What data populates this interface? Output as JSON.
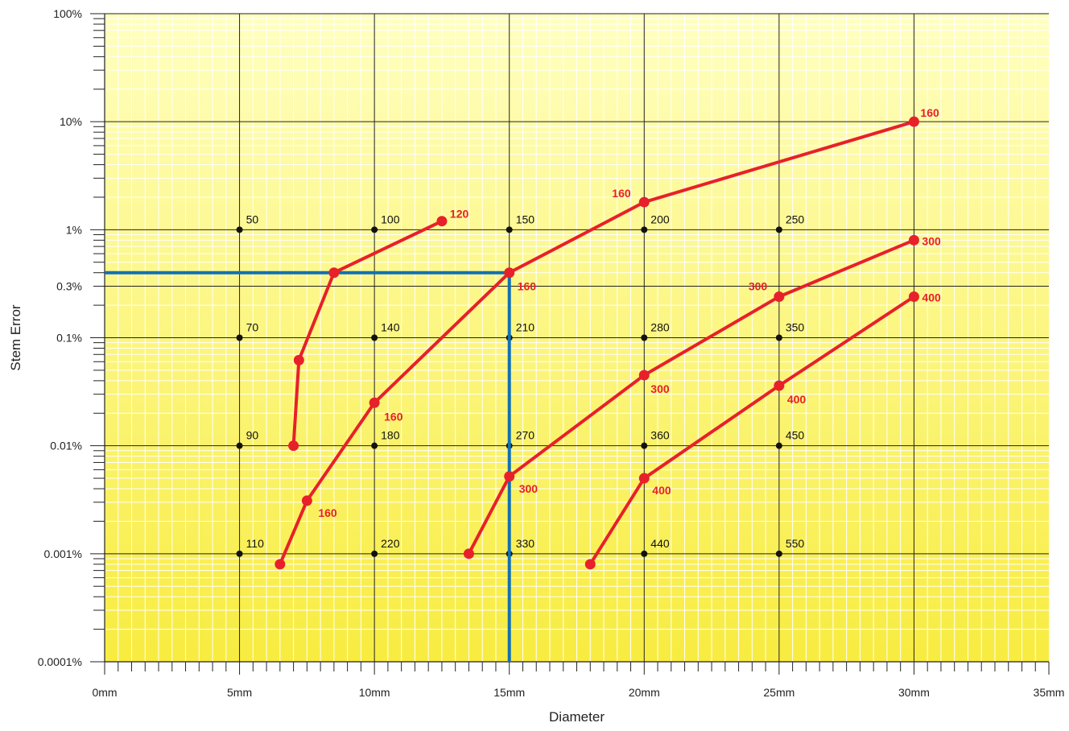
{
  "chart_data": {
    "type": "line",
    "xlabel": "Diameter",
    "ylabel": "Stem Error",
    "x_unit": "mm",
    "y_scale": "log",
    "xlim": [
      0,
      35
    ],
    "ylim": [
      0.0001,
      100
    ],
    "x_ticks": [
      {
        "value": 0,
        "label": "0mm"
      },
      {
        "value": 5,
        "label": "5mm"
      },
      {
        "value": 10,
        "label": "10mm"
      },
      {
        "value": 15,
        "label": "15mm"
      },
      {
        "value": 20,
        "label": "20mm"
      },
      {
        "value": 25,
        "label": "25mm"
      },
      {
        "value": 30,
        "label": "30mm"
      },
      {
        "value": 35,
        "label": "35mm"
      }
    ],
    "y_ticks": [
      {
        "value": 100,
        "label": "100%"
      },
      {
        "value": 10,
        "label": "10%"
      },
      {
        "value": 1,
        "label": "1%"
      },
      {
        "value": 0.3,
        "label": "0.3%"
      },
      {
        "value": 0.1,
        "label": "0.1%"
      },
      {
        "value": 0.01,
        "label": "0.01%"
      },
      {
        "value": 0.001,
        "label": "0.001%"
      },
      {
        "value": 0.0001,
        "label": "0.0001%"
      }
    ],
    "grid_nodes": [
      {
        "x": 5,
        "y": 1,
        "label": "50"
      },
      {
        "x": 10,
        "y": 1,
        "label": "100"
      },
      {
        "x": 15,
        "y": 1,
        "label": "150"
      },
      {
        "x": 20,
        "y": 1,
        "label": "200"
      },
      {
        "x": 25,
        "y": 1,
        "label": "250"
      },
      {
        "x": 5,
        "y": 0.1,
        "label": "70"
      },
      {
        "x": 10,
        "y": 0.1,
        "label": "140"
      },
      {
        "x": 15,
        "y": 0.1,
        "label": "210"
      },
      {
        "x": 20,
        "y": 0.1,
        "label": "280"
      },
      {
        "x": 25,
        "y": 0.1,
        "label": "350"
      },
      {
        "x": 5,
        "y": 0.01,
        "label": "90"
      },
      {
        "x": 10,
        "y": 0.01,
        "label": "180"
      },
      {
        "x": 15,
        "y": 0.01,
        "label": "270"
      },
      {
        "x": 20,
        "y": 0.01,
        "label": "360"
      },
      {
        "x": 25,
        "y": 0.01,
        "label": "450"
      },
      {
        "x": 5,
        "y": 0.001,
        "label": "110"
      },
      {
        "x": 10,
        "y": 0.001,
        "label": "220"
      },
      {
        "x": 15,
        "y": 0.001,
        "label": "330"
      },
      {
        "x": 20,
        "y": 0.001,
        "label": "440"
      },
      {
        "x": 25,
        "y": 0.001,
        "label": "550"
      }
    ],
    "series": [
      {
        "points": [
          {
            "x": 7.0,
            "y": 0.01
          },
          {
            "x": 7.2,
            "y": 0.062
          },
          {
            "x": 8.5,
            "y": 0.4
          },
          {
            "x": 12.5,
            "y": 1.2,
            "label": "120"
          }
        ]
      },
      {
        "points": [
          {
            "x": 6.5,
            "y": 0.0008
          },
          {
            "x": 7.5,
            "y": 0.0031,
            "label": "160"
          },
          {
            "x": 10.0,
            "y": 0.025,
            "label": "160"
          },
          {
            "x": 15.0,
            "y": 0.4,
            "label": "160"
          },
          {
            "x": 20.0,
            "y": 1.8,
            "label": "160"
          },
          {
            "x": 30.0,
            "y": 10,
            "label": "160"
          }
        ]
      },
      {
        "points": [
          {
            "x": 13.5,
            "y": 0.001
          },
          {
            "x": 15.0,
            "y": 0.0052,
            "label": "300"
          },
          {
            "x": 20.0,
            "y": 0.045,
            "label": "300"
          },
          {
            "x": 25.0,
            "y": 0.24,
            "label": "300"
          },
          {
            "x": 30.0,
            "y": 0.8,
            "label": "300"
          }
        ]
      },
      {
        "points": [
          {
            "x": 18.0,
            "y": 0.0008
          },
          {
            "x": 20.0,
            "y": 0.005,
            "label": "400"
          },
          {
            "x": 25.0,
            "y": 0.036,
            "label": "400"
          },
          {
            "x": 30.0,
            "y": 0.24,
            "label": "400"
          }
        ]
      }
    ],
    "highlight": {
      "x": 15,
      "y": 0.4
    },
    "colors": {
      "series": "#e8202a",
      "label": "#e8202a",
      "highlight": "#1170b4",
      "grid_major": "#222222",
      "grid_minor": "#ffffff",
      "background_top": "#ffffc0",
      "background_bottom": "#f8ec40"
    }
  }
}
